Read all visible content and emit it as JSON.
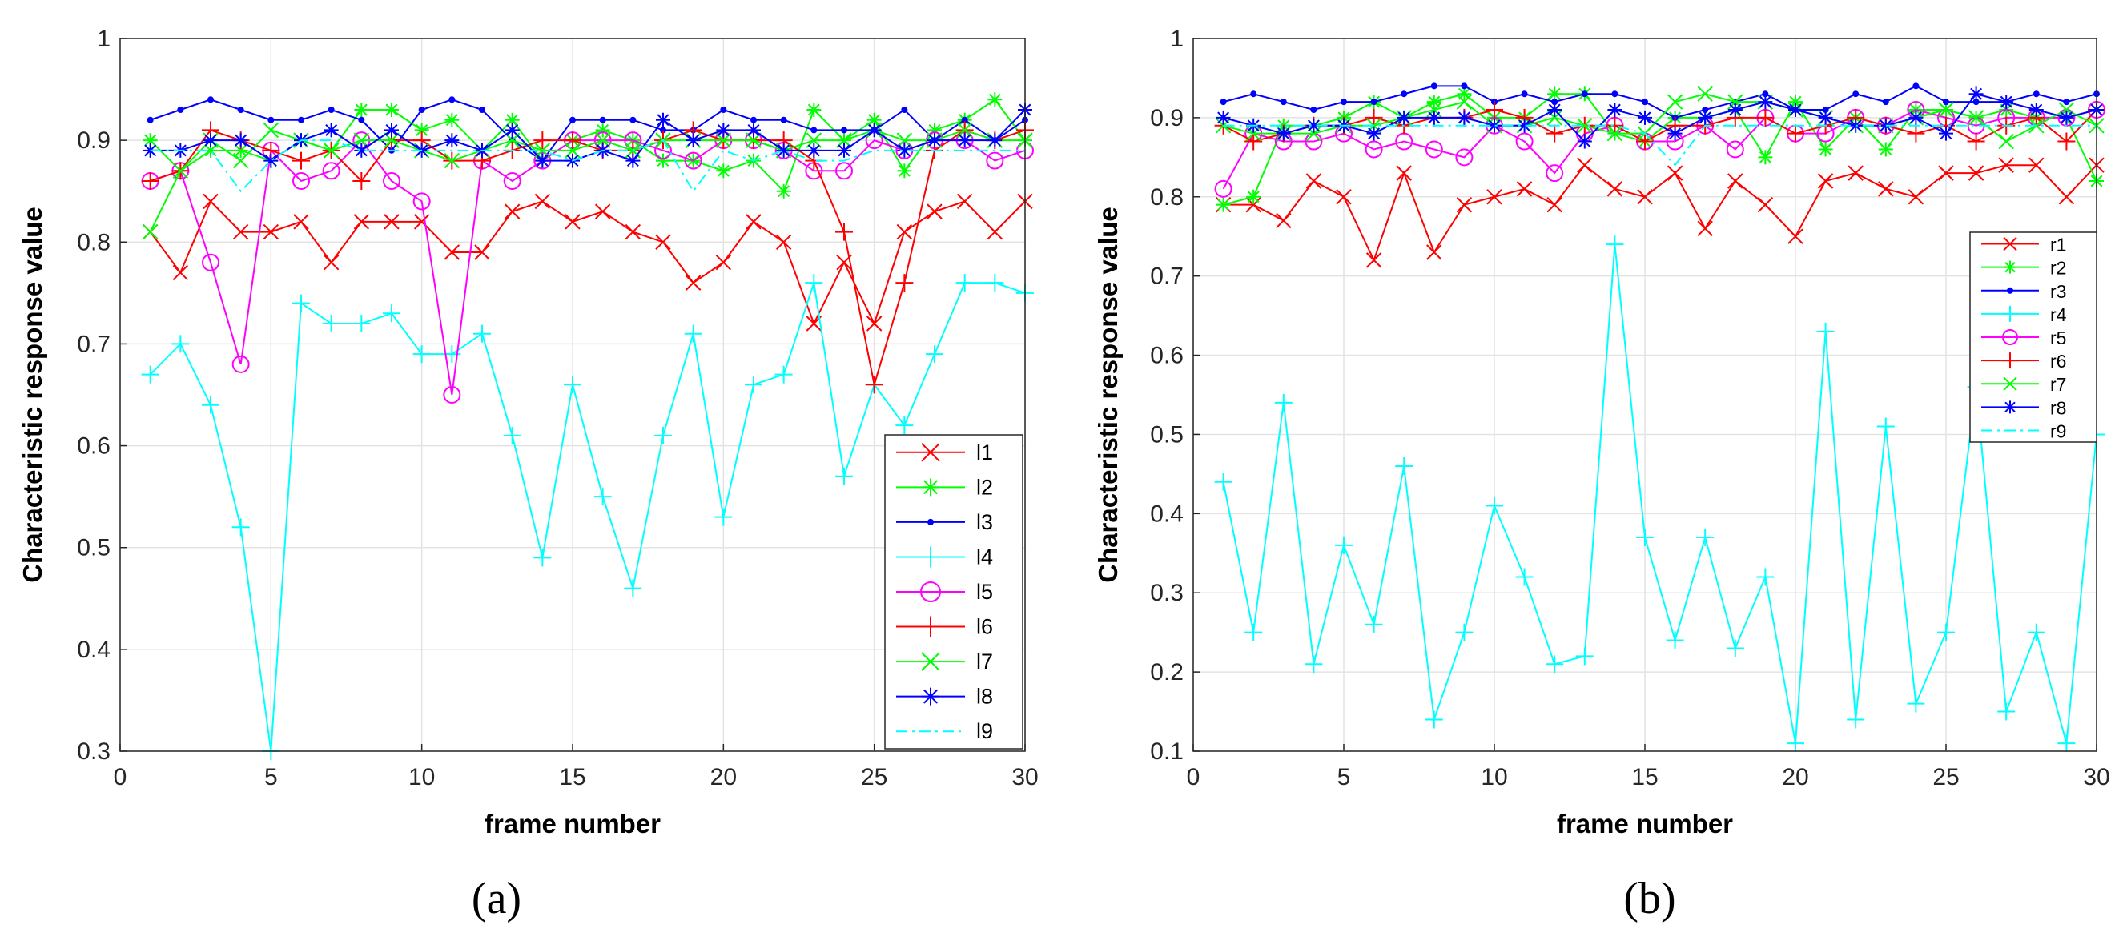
{
  "colors": {
    "red": "#ff0000",
    "green": "#00ff00",
    "blue": "#0000ff",
    "cyan": "#00ffff",
    "magenta": "#ff00ff"
  },
  "chart_data": [
    {
      "type": "line",
      "panel": "a",
      "caption": "(a)",
      "xlabel": "frame number",
      "ylabel": "Characteristic response value",
      "xlim": [
        0,
        30
      ],
      "ylim": [
        0.3,
        1
      ],
      "xticks": [
        "0",
        "5",
        "10",
        "15",
        "20",
        "25",
        "30"
      ],
      "yticks": [
        "0.3",
        "0.4",
        "0.5",
        "0.6",
        "0.7",
        "0.8",
        "0.9",
        "1"
      ],
      "grid": true,
      "legend_position": "bottom-right",
      "x": [
        1,
        2,
        3,
        4,
        5,
        6,
        7,
        8,
        9,
        10,
        11,
        12,
        13,
        14,
        15,
        16,
        17,
        18,
        19,
        20,
        21,
        22,
        23,
        24,
        25,
        26,
        27,
        28,
        29,
        30
      ],
      "series": [
        {
          "name": "l1",
          "color": "#ff0000",
          "marker": "x",
          "values": [
            0.81,
            0.77,
            0.84,
            0.81,
            0.81,
            0.82,
            0.78,
            0.82,
            0.82,
            0.82,
            0.79,
            0.79,
            0.83,
            0.84,
            0.82,
            0.83,
            0.81,
            0.8,
            0.76,
            0.78,
            0.82,
            0.8,
            0.72,
            0.78,
            0.72,
            0.81,
            0.83,
            0.84,
            0.81,
            0.84
          ]
        },
        {
          "name": "l2",
          "color": "#00ff00",
          "marker": "star",
          "values": [
            0.9,
            0.87,
            0.89,
            0.89,
            0.88,
            0.9,
            0.89,
            0.93,
            0.93,
            0.91,
            0.92,
            0.89,
            0.92,
            0.88,
            0.9,
            0.91,
            0.9,
            0.88,
            0.88,
            0.87,
            0.88,
            0.85,
            0.93,
            0.9,
            0.92,
            0.87,
            0.91,
            0.92,
            0.94,
            0.9
          ]
        },
        {
          "name": "l3",
          "color": "#0000ff",
          "marker": "dot",
          "values": [
            0.92,
            0.93,
            0.94,
            0.93,
            0.92,
            0.92,
            0.93,
            0.92,
            0.89,
            0.93,
            0.94,
            0.93,
            0.9,
            0.88,
            0.92,
            0.92,
            0.92,
            0.91,
            0.91,
            0.93,
            0.92,
            0.92,
            0.91,
            0.91,
            0.91,
            0.93,
            0.9,
            0.92,
            0.9,
            0.92
          ]
        },
        {
          "name": "l4",
          "color": "#00ffff",
          "marker": "plus",
          "values": [
            0.67,
            0.7,
            0.64,
            0.52,
            0.3,
            0.74,
            0.72,
            0.72,
            0.73,
            0.69,
            0.69,
            0.71,
            0.61,
            0.49,
            0.66,
            0.55,
            0.46,
            0.61,
            0.71,
            0.53,
            0.66,
            0.67,
            0.76,
            0.57,
            0.66,
            0.62,
            0.69,
            0.76,
            0.76,
            0.75
          ]
        },
        {
          "name": "l5",
          "color": "#ff00ff",
          "marker": "circle",
          "values": [
            0.86,
            0.87,
            0.78,
            0.68,
            0.89,
            0.86,
            0.87,
            0.9,
            0.86,
            0.84,
            0.65,
            0.88,
            0.86,
            0.88,
            0.9,
            0.9,
            0.9,
            0.89,
            0.88,
            0.9,
            0.9,
            0.89,
            0.87,
            0.87,
            0.9,
            0.89,
            0.9,
            0.9,
            0.88,
            0.89
          ]
        },
        {
          "name": "l6",
          "color": "#ff0000",
          "marker": "plus",
          "values": [
            0.86,
            0.87,
            0.91,
            0.9,
            0.89,
            0.88,
            0.89,
            0.86,
            0.9,
            0.9,
            0.88,
            0.88,
            0.89,
            0.9,
            0.9,
            0.89,
            0.89,
            0.9,
            0.91,
            0.9,
            0.9,
            0.9,
            0.88,
            0.81,
            0.66,
            0.76,
            0.89,
            0.91,
            0.9,
            0.91
          ]
        },
        {
          "name": "l7",
          "color": "#00ff00",
          "marker": "x",
          "values": [
            0.81,
            0.87,
            0.9,
            0.88,
            0.91,
            0.9,
            0.89,
            0.9,
            0.9,
            0.89,
            0.88,
            0.89,
            0.9,
            0.89,
            0.89,
            0.9,
            0.89,
            0.9,
            0.9,
            0.9,
            0.9,
            0.89,
            0.9,
            0.9,
            0.91,
            0.9,
            0.9,
            0.91,
            0.9,
            0.9
          ]
        },
        {
          "name": "l8",
          "color": "#0000ff",
          "marker": "star",
          "values": [
            0.89,
            0.89,
            0.9,
            0.9,
            0.88,
            0.9,
            0.91,
            0.89,
            0.91,
            0.89,
            0.9,
            0.89,
            0.91,
            0.88,
            0.88,
            0.89,
            0.88,
            0.92,
            0.9,
            0.91,
            0.91,
            0.89,
            0.89,
            0.89,
            0.91,
            0.89,
            0.9,
            0.9,
            0.9,
            0.93
          ]
        },
        {
          "name": "l9",
          "color": "#00ffff",
          "marker": "dashdot",
          "values": [
            0.89,
            0.89,
            0.89,
            0.85,
            0.88,
            0.9,
            0.9,
            0.89,
            0.89,
            0.89,
            0.89,
            0.89,
            0.89,
            0.89,
            0.88,
            0.89,
            0.89,
            0.9,
            0.85,
            0.89,
            0.88,
            0.89,
            0.88,
            0.88,
            0.89,
            0.89,
            0.89,
            0.89,
            0.89,
            0.89
          ]
        }
      ]
    },
    {
      "type": "line",
      "panel": "b",
      "caption": "(b)",
      "xlabel": "frame number",
      "ylabel": "Characteristic response value",
      "xlim": [
        0,
        30
      ],
      "ylim": [
        0.1,
        1
      ],
      "xticks": [
        "0",
        "5",
        "10",
        "15",
        "20",
        "25",
        "30"
      ],
      "yticks": [
        "0.1",
        "0.2",
        "0.3",
        "0.4",
        "0.5",
        "0.6",
        "0.7",
        "0.8",
        "0.9",
        "1"
      ],
      "grid": true,
      "legend_position": "top-right",
      "x": [
        1,
        2,
        3,
        4,
        5,
        6,
        7,
        8,
        9,
        10,
        11,
        12,
        13,
        14,
        15,
        16,
        17,
        18,
        19,
        20,
        21,
        22,
        23,
        24,
        25,
        26,
        27,
        28,
        29,
        30
      ],
      "series": [
        {
          "name": "r1",
          "color": "#ff0000",
          "marker": "x",
          "values": [
            0.79,
            0.79,
            0.77,
            0.82,
            0.8,
            0.72,
            0.83,
            0.73,
            0.79,
            0.8,
            0.81,
            0.79,
            0.84,
            0.81,
            0.8,
            0.83,
            0.76,
            0.82,
            0.79,
            0.75,
            0.82,
            0.83,
            0.81,
            0.8,
            0.83,
            0.83,
            0.84,
            0.84,
            0.8,
            0.84
          ]
        },
        {
          "name": "r2",
          "color": "#00ff00",
          "marker": "star",
          "values": [
            0.79,
            0.8,
            0.89,
            0.89,
            0.9,
            0.92,
            0.9,
            0.92,
            0.93,
            0.9,
            0.9,
            0.93,
            0.93,
            0.88,
            0.87,
            0.9,
            0.9,
            0.91,
            0.85,
            0.92,
            0.86,
            0.9,
            0.86,
            0.91,
            0.91,
            0.9,
            0.91,
            0.9,
            0.9,
            0.82
          ]
        },
        {
          "name": "r3",
          "color": "#0000ff",
          "marker": "dot",
          "values": [
            0.92,
            0.93,
            0.92,
            0.91,
            0.92,
            0.92,
            0.93,
            0.94,
            0.94,
            0.92,
            0.93,
            0.92,
            0.93,
            0.93,
            0.92,
            0.9,
            0.91,
            0.92,
            0.93,
            0.91,
            0.91,
            0.93,
            0.92,
            0.94,
            0.92,
            0.92,
            0.92,
            0.93,
            0.92,
            0.93
          ]
        },
        {
          "name": "r4",
          "color": "#00ffff",
          "marker": "plus",
          "values": [
            0.44,
            0.25,
            0.54,
            0.21,
            0.36,
            0.26,
            0.46,
            0.14,
            0.25,
            0.41,
            0.32,
            0.21,
            0.22,
            0.74,
            0.37,
            0.24,
            0.37,
            0.23,
            0.32,
            0.11,
            0.63,
            0.14,
            0.51,
            0.16,
            0.25,
            0.56,
            0.15,
            0.25,
            0.11,
            0.5
          ]
        },
        {
          "name": "r5",
          "color": "#ff00ff",
          "marker": "circle",
          "values": [
            0.81,
            0.88,
            0.87,
            0.87,
            0.88,
            0.86,
            0.87,
            0.86,
            0.85,
            0.89,
            0.87,
            0.83,
            0.88,
            0.89,
            0.87,
            0.87,
            0.89,
            0.86,
            0.9,
            0.88,
            0.88,
            0.9,
            0.89,
            0.91,
            0.9,
            0.89,
            0.9,
            0.9,
            0.9,
            0.91
          ]
        },
        {
          "name": "r6",
          "color": "#ff0000",
          "marker": "plus",
          "values": [
            0.89,
            0.87,
            0.88,
            0.89,
            0.89,
            0.9,
            0.89,
            0.9,
            0.9,
            0.91,
            0.9,
            0.88,
            0.89,
            0.89,
            0.87,
            0.89,
            0.89,
            0.9,
            0.9,
            0.88,
            0.89,
            0.9,
            0.89,
            0.88,
            0.89,
            0.87,
            0.89,
            0.9,
            0.87,
            0.91
          ]
        },
        {
          "name": "r7",
          "color": "#00ff00",
          "marker": "x",
          "values": [
            0.89,
            0.88,
            0.88,
            0.88,
            0.89,
            0.89,
            0.9,
            0.91,
            0.92,
            0.89,
            0.89,
            0.9,
            0.89,
            0.88,
            0.88,
            0.92,
            0.93,
            0.92,
            0.92,
            0.91,
            0.9,
            0.89,
            0.89,
            0.9,
            0.91,
            0.9,
            0.87,
            0.89,
            0.91,
            0.89
          ]
        },
        {
          "name": "r8",
          "color": "#0000ff",
          "marker": "star",
          "values": [
            0.9,
            0.89,
            0.88,
            0.89,
            0.89,
            0.88,
            0.9,
            0.9,
            0.9,
            0.89,
            0.89,
            0.91,
            0.87,
            0.91,
            0.9,
            0.88,
            0.9,
            0.91,
            0.92,
            0.91,
            0.9,
            0.89,
            0.89,
            0.9,
            0.88,
            0.93,
            0.92,
            0.91,
            0.9,
            0.91
          ]
        },
        {
          "name": "r9",
          "color": "#00ffff",
          "marker": "dashdot",
          "values": [
            0.89,
            0.89,
            0.89,
            0.89,
            0.89,
            0.89,
            0.89,
            0.89,
            0.89,
            0.89,
            0.89,
            0.89,
            0.89,
            0.89,
            0.88,
            0.84,
            0.89,
            0.89,
            0.89,
            0.89,
            0.89,
            0.89,
            0.89,
            0.89,
            0.89,
            0.89,
            0.89,
            0.89,
            0.89,
            0.89
          ]
        }
      ]
    }
  ]
}
